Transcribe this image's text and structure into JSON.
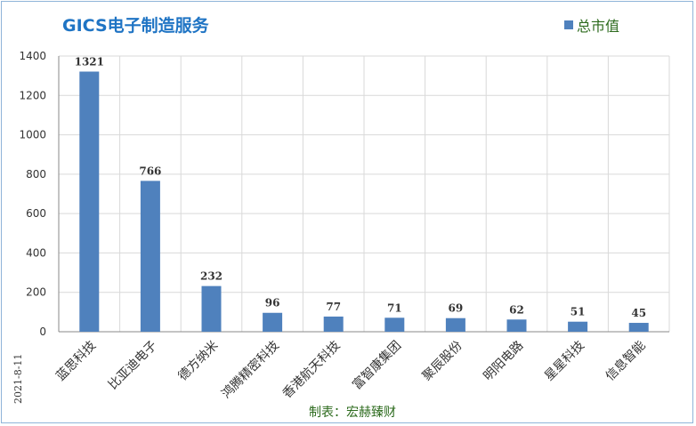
{
  "chart_title": "GICS电子制造服务",
  "legend_label": "总市值",
  "date_label": "2021-8-11",
  "footer": "制表：宏赫臻财",
  "colors": {
    "bar": "#4f81bd",
    "title": "#1f74c4",
    "legend_text": "#2d6b1e",
    "grid": "#d9d9d9"
  },
  "chart_data": {
    "type": "bar",
    "categories": [
      "蓝思科技",
      "比亚迪电子",
      "德方纳米",
      "鸿腾精密科技",
      "香港航天科技",
      "富智康集团",
      "聚辰股份",
      "明阳电路",
      "星星科技",
      "信息智能"
    ],
    "series": [
      {
        "name": "总市值",
        "values": [
          1321,
          766,
          232,
          96,
          77,
          71,
          69,
          62,
          51,
          45
        ]
      }
    ],
    "ylim": [
      0,
      1400
    ],
    "yticks": [
      0,
      200,
      400,
      600,
      800,
      1000,
      1200,
      1400
    ],
    "grid": true,
    "legend_position": "top-right",
    "data_labels": true
  }
}
